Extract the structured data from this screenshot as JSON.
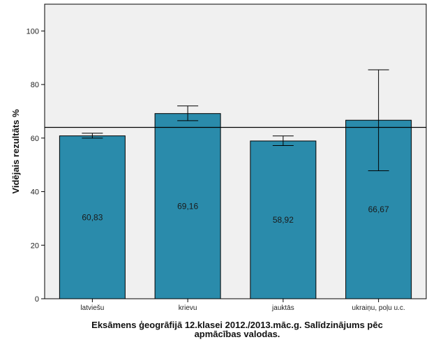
{
  "chart_data": {
    "type": "bar",
    "categories": [
      "latviešu",
      "krievu",
      "jauktās",
      "ukraiņu, poļu u.c."
    ],
    "values": [
      60.83,
      69.16,
      58.92,
      66.67
    ],
    "value_labels": [
      "60,83",
      "69,16",
      "58,92",
      "66,67"
    ],
    "error_bars": [
      {
        "low": 60.0,
        "high": 61.8
      },
      {
        "low": 66.5,
        "high": 72.0
      },
      {
        "low": 57.2,
        "high": 60.8
      },
      {
        "low": 47.8,
        "high": 85.5
      }
    ],
    "reference_line": 64,
    "ylabel": "Vidējais rezultāts %",
    "xlabel_line1": "Eksāmens ģeogrāfijā 12.klasei 2012./2013.māc.g. Salīdzinājums pēc",
    "xlabel_line2": "apmācības valodas.",
    "ylim": [
      0,
      110
    ],
    "yticks": [
      0,
      20,
      40,
      60,
      80,
      100
    ],
    "grid": false,
    "colors": {
      "bar": "#2a8bab",
      "plot_background": "#f0f0f0",
      "outline": "#000000"
    }
  }
}
